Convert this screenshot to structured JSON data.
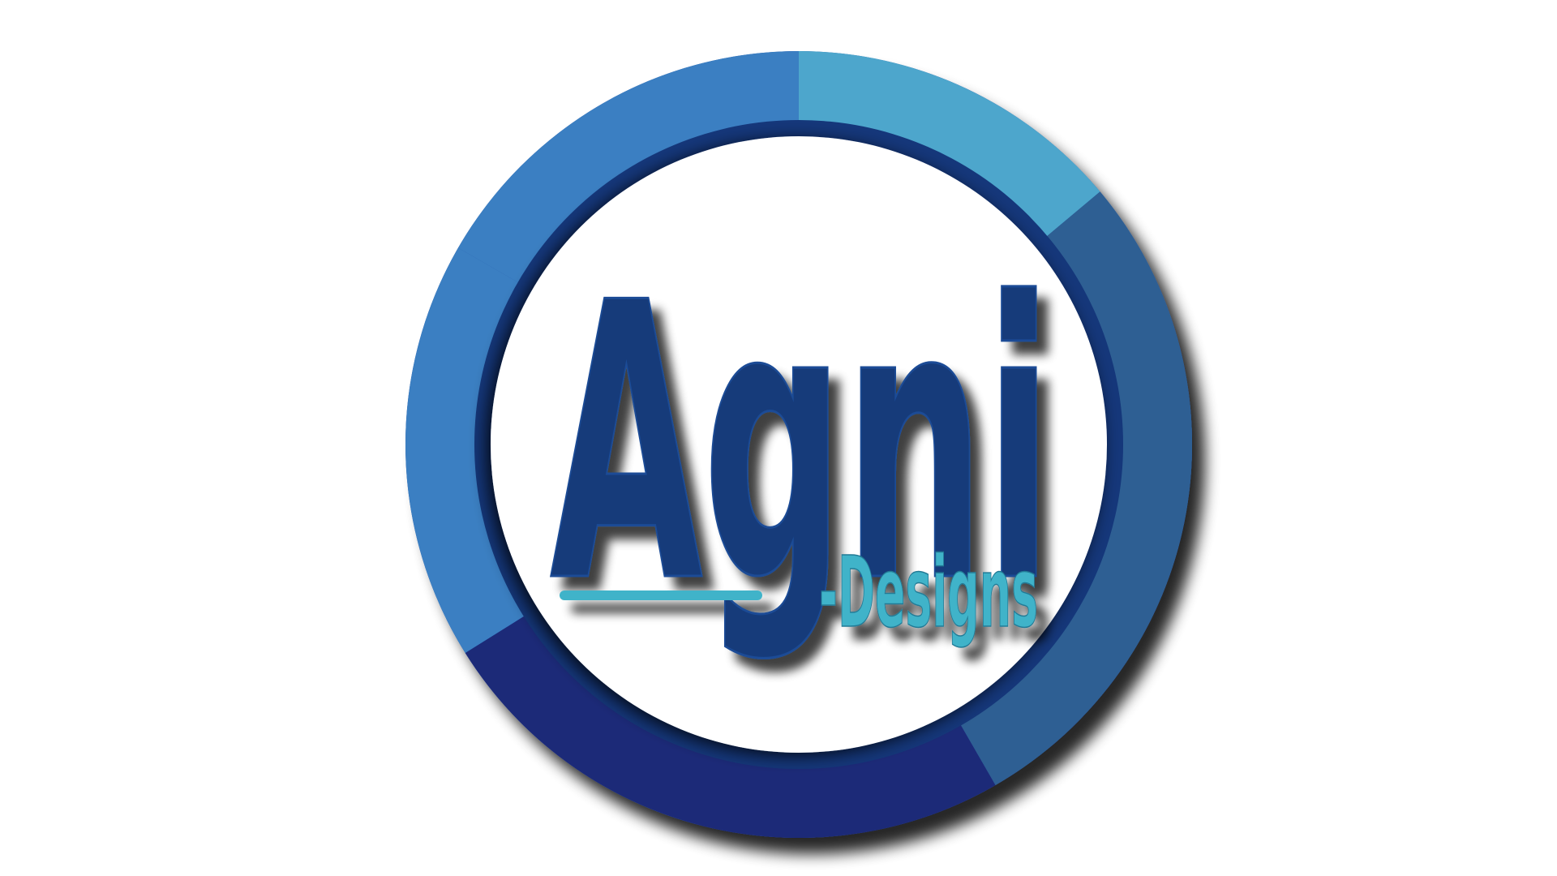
{
  "logo": {
    "brand_name": "Agni",
    "tagline": "-Designs",
    "colors": {
      "background": "#ffffff",
      "ring_light": "#4ea6cc",
      "ring_mid": "#3a7fc2",
      "ring_dark": "#1d2a78",
      "ring_steel": "#2f5f93",
      "inner_ring": "#15377a",
      "wordmark": "#163a7a",
      "wordmark_outline": "#1b4c96",
      "tagline": "#3fb3c9",
      "underline": "#3fb3c9",
      "shadow": "#000000"
    }
  }
}
